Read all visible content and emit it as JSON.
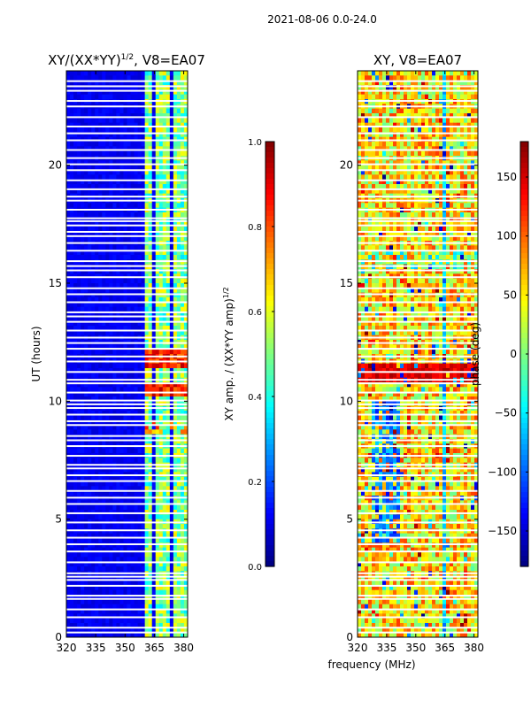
{
  "suptitle": "2021-08-06 0.0-24.0",
  "colors": {
    "jet": [
      "#00007f",
      "#0000ff",
      "#007fff",
      "#00ffff",
      "#7fff7f",
      "#ffff00",
      "#ff7f00",
      "#ff0000",
      "#7f0000"
    ],
    "gap": "#ffffff"
  },
  "chart_data": [
    {
      "type": "heatmap",
      "title": "XY/(XX*YY)",
      "title_superscript": "1/2",
      "title_suffix": ", V8=EA07",
      "xlabel": "frequency (MHz)",
      "ylabel": "UT (hours)",
      "xlim": [
        320,
        382
      ],
      "ylim": [
        0,
        24
      ],
      "xticks": [
        320,
        335,
        350,
        365,
        380
      ],
      "yticks": [
        0,
        5,
        10,
        15,
        20
      ],
      "colorbar": {
        "label": "XY amp. / (XX*YY amp)",
        "label_superscript": "1/2",
        "vmin": 0.0,
        "vmax": 1.0,
        "ticks": [
          "0.0",
          "0.2",
          "0.4",
          "0.6",
          "0.8",
          "1.0"
        ]
      },
      "value_description": "mostly near 0 (dark blue); bright channels near 360-380 MHz with values 0.4-0.9, peaks near 11-12 h and 10.5 h"
    },
    {
      "type": "heatmap",
      "title": "XY, V8=EA07",
      "xlabel": "frequency (MHz)",
      "ylabel": "",
      "xlim": [
        320,
        382
      ],
      "ylim": [
        0,
        24
      ],
      "xticks": [
        320,
        335,
        350,
        365,
        380
      ],
      "yticks": [
        0,
        5,
        10,
        15,
        20
      ],
      "colorbar": {
        "label": "phase (deg)",
        "vmin": -180,
        "vmax": 180,
        "ticks": [
          "−150",
          "−100",
          "−50",
          "0",
          "50",
          "100",
          "150"
        ]
      },
      "value_description": "phase varies between -180 and 180 deg; noisy structure with yellow/red regions and blue bands"
    }
  ],
  "shared_xlabel": "frequency (MHz)"
}
